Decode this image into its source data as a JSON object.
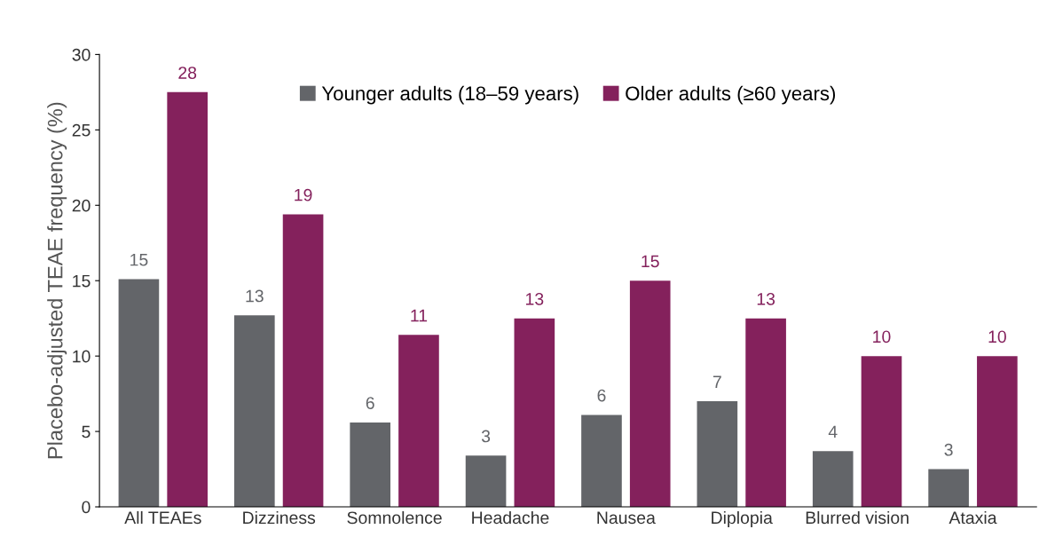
{
  "chart_data": {
    "type": "bar",
    "ylabel": "Placebo-adjusted TEAE frequency (%)",
    "categories": [
      "All TEAEs",
      "Dizziness",
      "Somnolence",
      "Headache",
      "Nausea",
      "Diplopia",
      "Blurred vision",
      "Ataxia"
    ],
    "series": [
      {
        "name": "Younger adults (18–59 years)",
        "color": "#636569",
        "values": [
          15.1,
          12.7,
          5.6,
          3.4,
          6.1,
          7.0,
          3.7,
          2.5
        ],
        "value_labels": [
          "15",
          "13",
          "6",
          "3",
          "6",
          "7",
          "4",
          "3"
        ]
      },
      {
        "name": "Older adults (≥60 years)",
        "color": "#84215c",
        "values": [
          27.5,
          19.4,
          11.4,
          12.5,
          15.0,
          12.5,
          10.0,
          10.0
        ],
        "value_labels": [
          "28",
          "19",
          "11",
          "13",
          "15",
          "13",
          "10",
          "10"
        ]
      }
    ],
    "ylim": [
      0,
      30
    ],
    "yticks": [
      0,
      5,
      10,
      15,
      20,
      25,
      30
    ],
    "grid": false,
    "legend": "top"
  }
}
